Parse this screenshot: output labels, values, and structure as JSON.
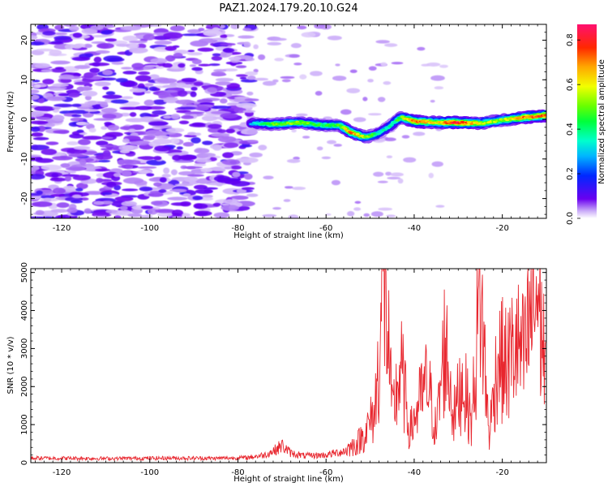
{
  "title": "PAZ1.2024.179.20.10.G24",
  "chart_data": [
    {
      "type": "heatmap",
      "xlabel": "Height of straight line (km)",
      "ylabel": "Frequency (Hz)",
      "xlim": [
        -127,
        -10
      ],
      "ylim": [
        -25,
        24
      ],
      "xticks": [
        -120,
        -100,
        -80,
        -60,
        -40,
        -20
      ],
      "yticks": [
        -20,
        -10,
        0,
        10,
        20
      ],
      "colormap": "gist_rainbow (white at 0)",
      "colorbar": {
        "label": "Normalized spectral amplitude",
        "range": [
          0.0,
          0.87
        ],
        "ticks": [
          0.0,
          0.2,
          0.4,
          0.6,
          0.8
        ],
        "tick_labels": [
          "0.0",
          "0.2",
          "0.4",
          "0.6",
          "0.8"
        ]
      },
      "ridge": {
        "x": [
          -77,
          -72,
          -66,
          -61,
          -57,
          -54,
          -51,
          -48,
          -46,
          -43,
          -40,
          -35,
          -30,
          -25,
          -20,
          -15,
          -10
        ],
        "y": [
          -1,
          -1.2,
          -0.8,
          -1.5,
          -1.5,
          -3.5,
          -4.5,
          -3.5,
          -2,
          0.5,
          -0.5,
          -0.8,
          -0.8,
          -1,
          -0.2,
          0.5,
          1
        ],
        "peak_amplitude": [
          0.3,
          0.5,
          0.55,
          0.45,
          0.5,
          0.75,
          0.55,
          0.4,
          0.35,
          0.5,
          0.8,
          0.6,
          0.87,
          0.6,
          0.55,
          0.75,
          0.8
        ]
      }
    },
    {
      "type": "line",
      "xlabel": "Height of straight line (km)",
      "ylabel": "SNR (10 * v/v)",
      "xlim": [
        -127,
        -10
      ],
      "ylim": [
        0,
        5100
      ],
      "xticks": [
        -120,
        -100,
        -80,
        -60,
        -40,
        -20
      ],
      "yticks": [
        0,
        1000,
        2000,
        3000,
        4000,
        5000
      ],
      "color": "#e8262e",
      "series": [
        {
          "x": [
            -127,
            -110,
            -95,
            -85,
            -78,
            -74,
            -72,
            -70,
            -68,
            -65,
            -60,
            -56,
            -53,
            -51,
            -49,
            -48,
            -47,
            -46,
            -45,
            -43,
            -41,
            -39,
            -37,
            -35,
            -33,
            -31,
            -29,
            -27,
            -25,
            -23,
            -21,
            -19,
            -17,
            -15,
            -13,
            -12,
            -11,
            -10
          ],
          "y": [
            120,
            110,
            120,
            115,
            130,
            200,
            300,
            450,
            250,
            180,
            200,
            300,
            500,
            800,
            1300,
            2700,
            5000,
            3500,
            1200,
            2500,
            800,
            1500,
            2100,
            800,
            3200,
            1200,
            2200,
            1000,
            4500,
            700,
            2800,
            2500,
            3100,
            2700,
            4200,
            4400,
            3500,
            2200
          ]
        }
      ]
    }
  ]
}
